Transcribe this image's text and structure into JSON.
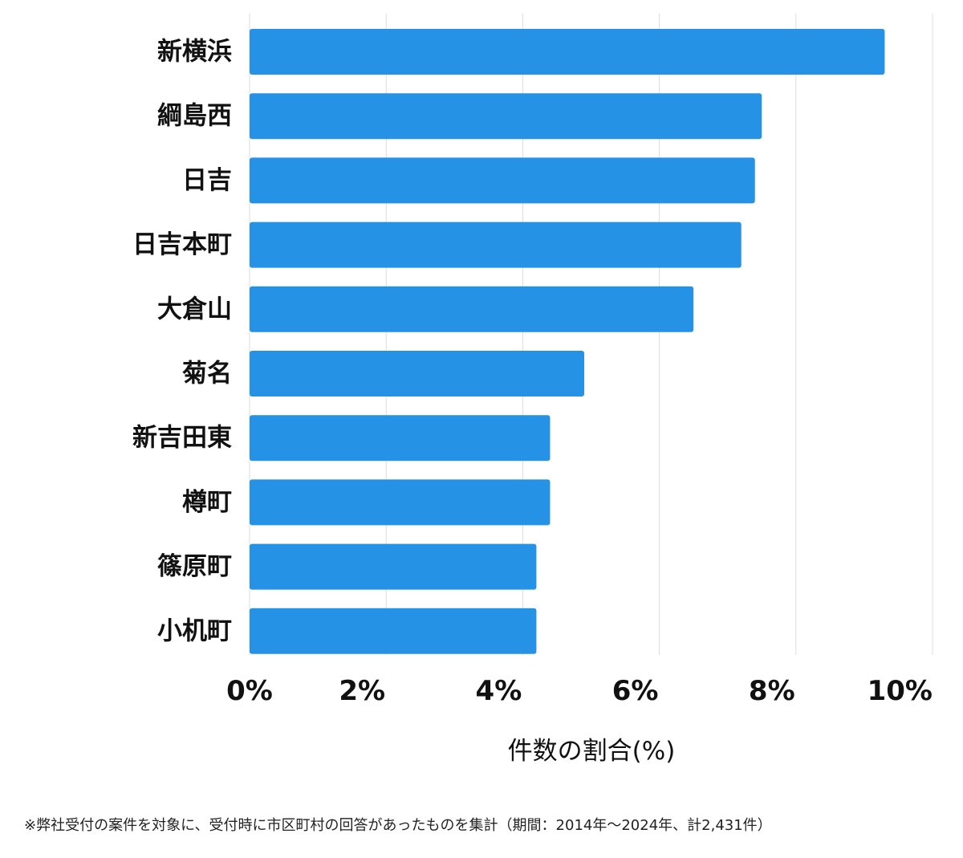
{
  "chart_data": {
    "type": "bar",
    "orientation": "horizontal",
    "categories": [
      "新横浜",
      "綱島西",
      "日吉",
      "日吉本町",
      "大倉山",
      "菊名",
      "新吉田東",
      "樽町",
      "篠原町",
      "小机町"
    ],
    "values": [
      9.3,
      7.5,
      7.4,
      7.2,
      6.5,
      4.9,
      4.4,
      4.4,
      4.2,
      4.2
    ],
    "xlabel": "件数の割合(%)",
    "xlim": [
      0,
      10
    ],
    "xticks": [
      0,
      2,
      4,
      6,
      8,
      10
    ],
    "xtick_labels": [
      "0%",
      "2%",
      "4%",
      "6%",
      "8%",
      "10%"
    ],
    "grid": "vertical",
    "bar_color": "#2592e5",
    "grid_color": "#dddddd"
  },
  "footnote": "※弊社受付の案件を対象に、受付時に市区町村の回答があったものを集計（期間：2014年〜2024年、計2,431件）"
}
